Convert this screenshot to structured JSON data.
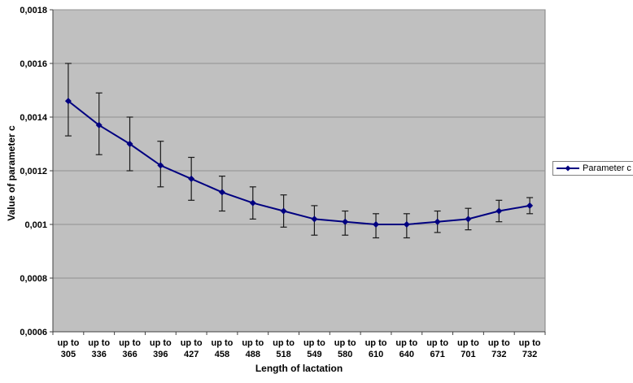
{
  "chart_data": {
    "type": "line",
    "title": "",
    "xlabel": "Length of lactation",
    "ylabel": "Value of parameter c",
    "x_tick_prefix": "up to",
    "categories": [
      "305",
      "336",
      "366",
      "396",
      "427",
      "458",
      "488",
      "518",
      "549",
      "580",
      "610",
      "640",
      "671",
      "701",
      "732",
      "732"
    ],
    "series": [
      {
        "name": "Parameter c",
        "marker": "diamond",
        "values": [
          0.00146,
          0.00137,
          0.0013,
          0.00122,
          0.00117,
          0.00112,
          0.00108,
          0.00105,
          0.00102,
          0.00101,
          0.001,
          0.001,
          0.00101,
          0.00102,
          0.00105,
          0.00107
        ],
        "error_upper": [
          0.0016,
          0.00149,
          0.0014,
          0.00131,
          0.00125,
          0.00118,
          0.00114,
          0.00111,
          0.00107,
          0.00105,
          0.00104,
          0.00104,
          0.00105,
          0.00106,
          0.00109,
          0.0011
        ],
        "error_lower": [
          0.00133,
          0.00126,
          0.0012,
          0.00114,
          0.00109,
          0.00105,
          0.00102,
          0.00099,
          0.00096,
          0.00096,
          0.00095,
          0.00095,
          0.00097,
          0.00098,
          0.00101,
          0.00104
        ]
      }
    ],
    "ylim": [
      0.0006,
      0.0018
    ],
    "y_ticks": [
      {
        "value": 0.0006,
        "label": "0,0006"
      },
      {
        "value": 0.0008,
        "label": "0,0008"
      },
      {
        "value": 0.001,
        "label": "0,001"
      },
      {
        "value": 0.0012,
        "label": "0,0012"
      },
      {
        "value": 0.0014,
        "label": "0,0014"
      },
      {
        "value": 0.0016,
        "label": "0,0016"
      },
      {
        "value": 0.0018,
        "label": "0,0018"
      }
    ],
    "grid": true,
    "legend_position": "right",
    "colors": {
      "plot_bg": "#c0c0c0",
      "plot_border": "#808080",
      "gridline": "#909090",
      "series_line": "#000080",
      "error_bar": "#1a1a1a",
      "axis": "#404040",
      "text": "#000000",
      "page_bg": "#ffffff",
      "legend_border": "#808080"
    }
  }
}
